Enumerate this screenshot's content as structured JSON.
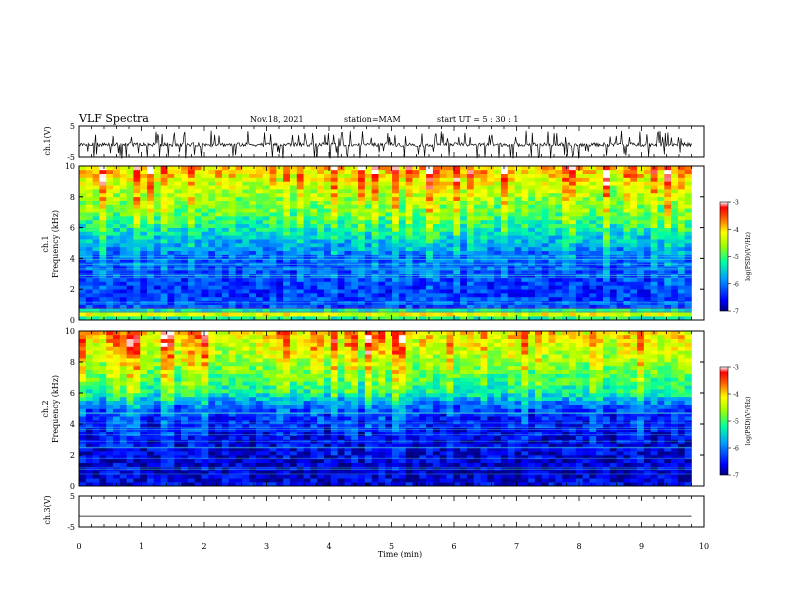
{
  "header": {
    "title": "VLF Spectra",
    "date": "Nov.18, 2021",
    "station": "station=MAM",
    "start": "start  UT  =   5 : 30 : 1"
  },
  "chart_data": [
    {
      "type": "line",
      "panel": "ch1-waveform",
      "ylabel": "ch.1(V)",
      "ylim": [
        -5,
        5
      ],
      "yticks": [
        "5",
        "-5"
      ],
      "xlim": [
        0,
        10
      ],
      "description_series": "noisy waveform with impulsive spikes, baseline near -1 V",
      "baseline": -1.0
    },
    {
      "type": "heatmap",
      "panel": "ch1-spectrogram",
      "ylabel": "ch.1\nFrequency (kHz)",
      "ylabel_line1": "ch.1",
      "ylabel_line2": "Frequency  (kHz)",
      "ylim": [
        0,
        10
      ],
      "yticks": [
        "0",
        "2",
        "4",
        "6",
        "8",
        "10"
      ],
      "xlim": [
        0,
        9.8
      ],
      "colorbar": {
        "label": "log(PSD)(V²/Hz)",
        "ticks": [
          "-3",
          "-4",
          "-5",
          "-6",
          "-7"
        ],
        "range": [
          -7,
          -3
        ],
        "colors": [
          "#000080",
          "#0000ff",
          "#00c0ff",
          "#00ff80",
          "#c0ff00",
          "#ffff00",
          "#ff8000",
          "#ff0000",
          "#ffffff"
        ]
      },
      "profile": {
        "band_logpsd": [
          {
            "f": 0.0,
            "v": -5.6
          },
          {
            "f": 0.4,
            "v": -4.2
          },
          {
            "f": 0.8,
            "v": -6.2
          },
          {
            "f": 2.0,
            "v": -6.4
          },
          {
            "f": 4.0,
            "v": -6.2
          },
          {
            "f": 5.5,
            "v": -5.6
          },
          {
            "f": 7.0,
            "v": -5.0
          },
          {
            "f": 8.5,
            "v": -4.6
          },
          {
            "f": 10.0,
            "v": -4.1
          }
        ]
      }
    },
    {
      "type": "heatmap",
      "panel": "ch2-spectrogram",
      "ylabel_line1": "ch.2",
      "ylabel_line2": "Frequency  (kHz)",
      "ylim": [
        0,
        10
      ],
      "yticks": [
        "0",
        "2",
        "4",
        "6",
        "8",
        "10"
      ],
      "xlim": [
        0,
        9.8
      ],
      "colorbar": {
        "label": "log(PSD)(V²/Hz)",
        "ticks": [
          "-3",
          "-4",
          "-5",
          "-6",
          "-7"
        ],
        "range": [
          -7,
          -3
        ]
      },
      "profile": {
        "band_logpsd": [
          {
            "f": 0.0,
            "v": -6.6
          },
          {
            "f": 1.0,
            "v": -6.8
          },
          {
            "f": 3.0,
            "v": -6.7
          },
          {
            "f": 5.0,
            "v": -6.4
          },
          {
            "f": 6.0,
            "v": -5.4
          },
          {
            "f": 7.5,
            "v": -4.9
          },
          {
            "f": 9.0,
            "v": -4.5
          },
          {
            "f": 10.0,
            "v": -4.3
          }
        ]
      }
    },
    {
      "type": "line",
      "panel": "ch3-waveform",
      "ylabel": "ch.3(V)",
      "ylim": [
        -5,
        5
      ],
      "yticks": [
        "5",
        "-5"
      ],
      "xlim": [
        0,
        10
      ],
      "baseline": -1.5
    }
  ],
  "xaxis": {
    "label": "Time  (min)",
    "ticks": [
      "0",
      "1",
      "2",
      "3",
      "4",
      "5",
      "6",
      "7",
      "8",
      "9",
      "10"
    ],
    "range": [
      0,
      10
    ]
  },
  "colors": {
    "background": "#ffffff",
    "axes": "#000000"
  }
}
